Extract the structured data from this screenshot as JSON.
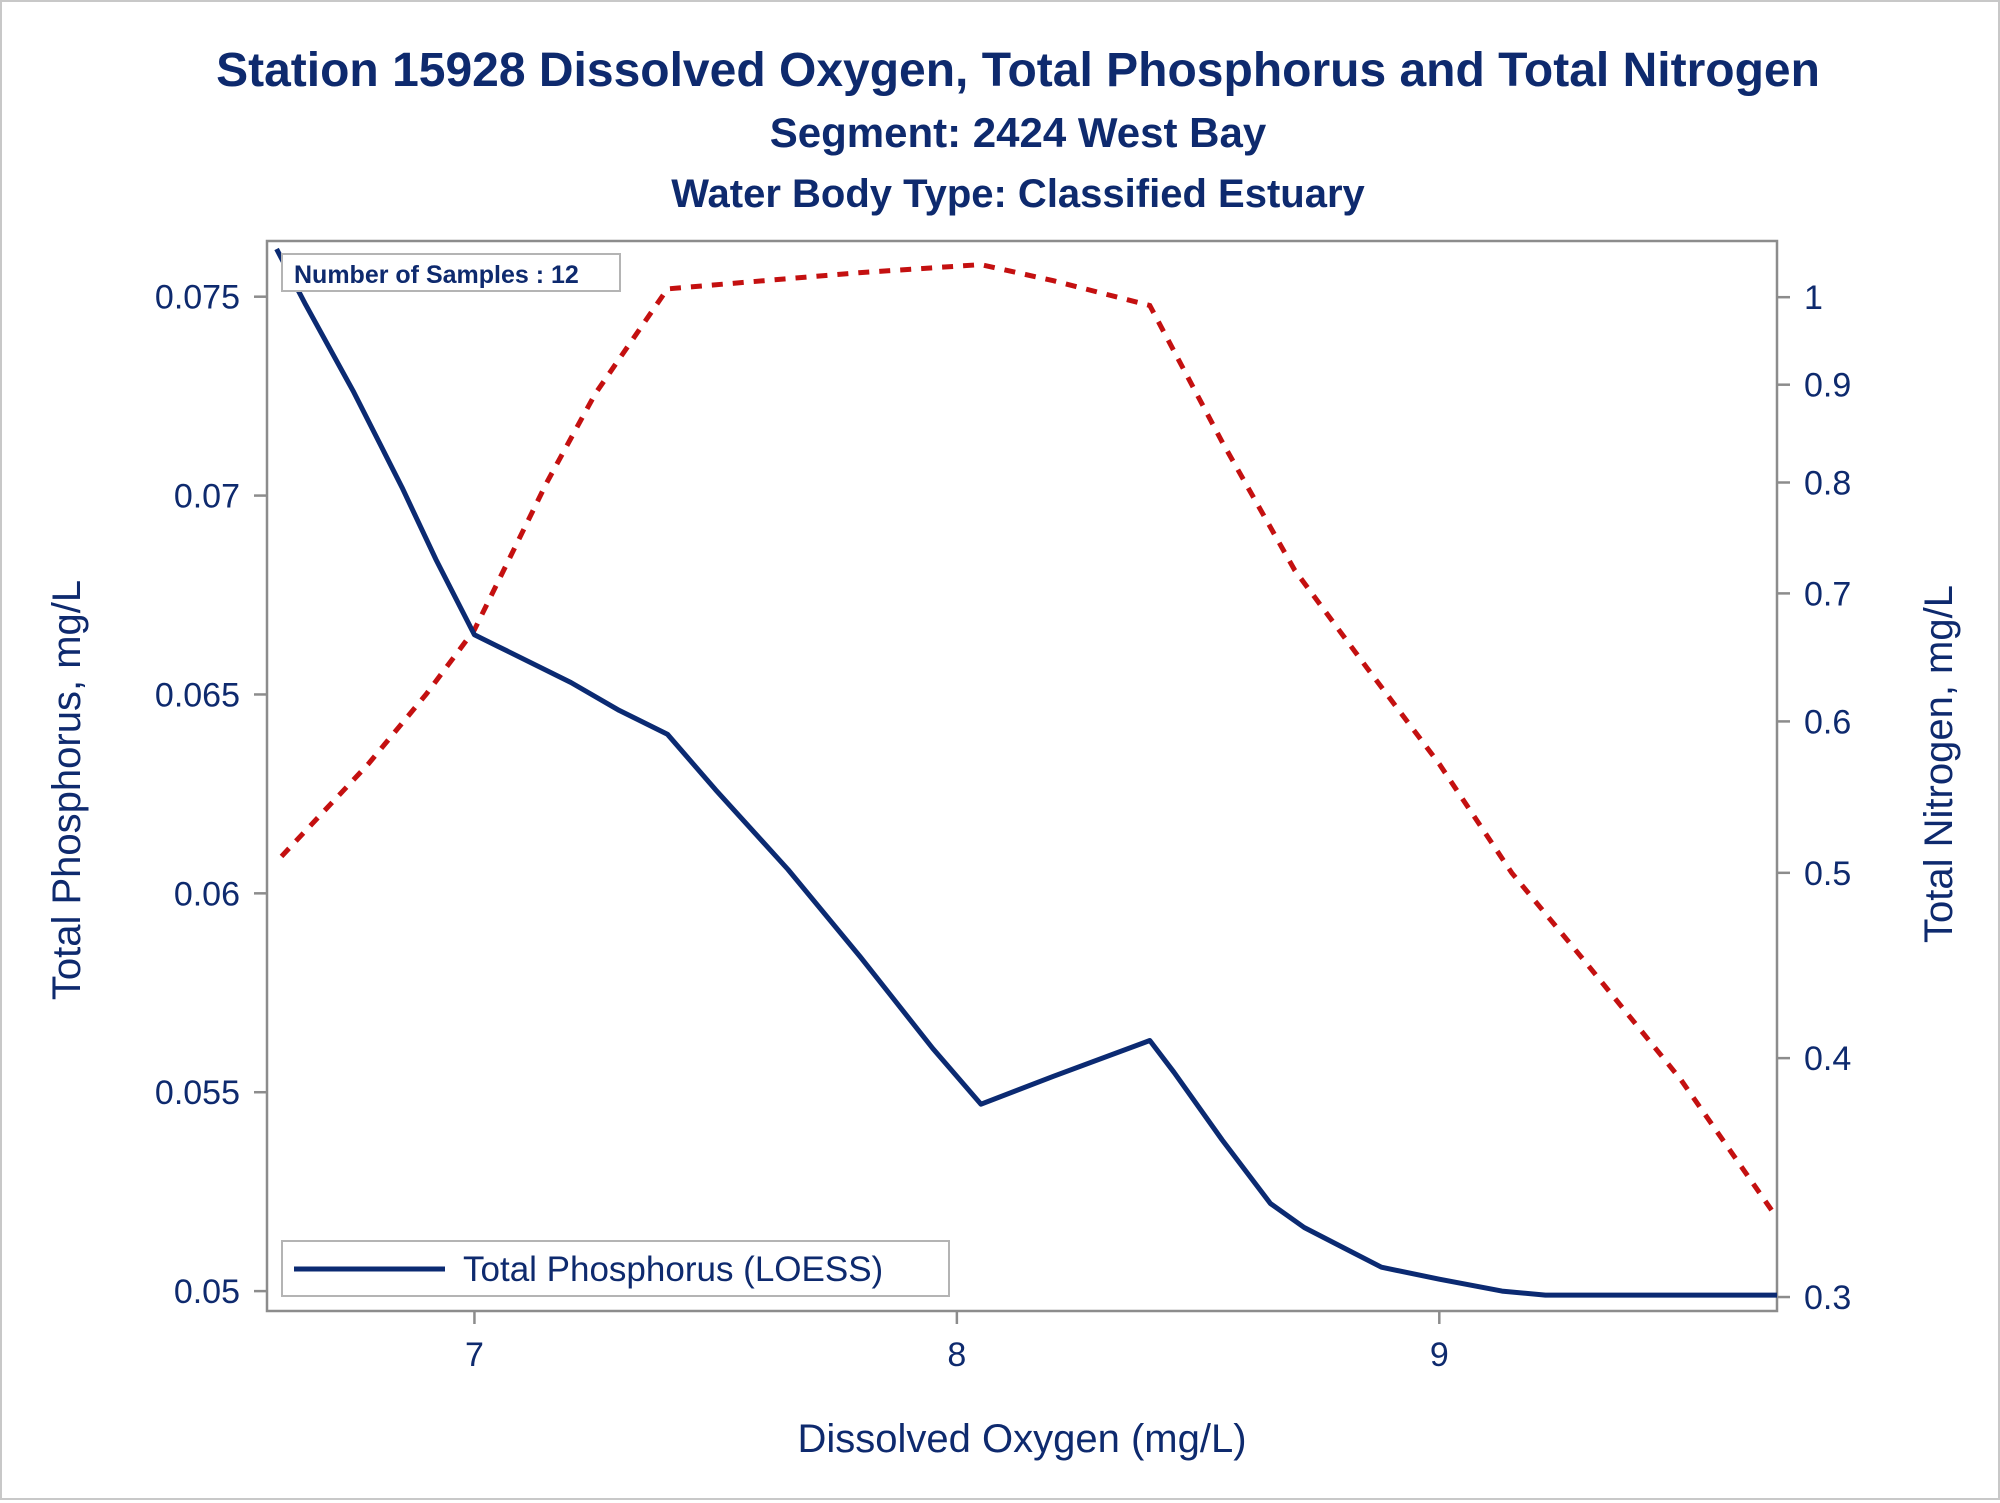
{
  "titles": {
    "line1": "Station 15928  Dissolved Oxygen, Total Phosphorus and Total Nitrogen",
    "line2": "Segment: 2424  West Bay",
    "line3": "Water Body Type: Classified Estuary"
  },
  "colors": {
    "text": "#0e2a6e",
    "phosphorus": "#0b2a72",
    "nitrogen": "#c41010",
    "frame": "#8c8c8c"
  },
  "inset_label": "Number of Samples : 12",
  "legend": {
    "label": "Total Phosphorus (LOESS)",
    "position": "bottom-left"
  },
  "chart_data": {
    "type": "line",
    "xlabel": "Dissolved Oxygen (mg/L)",
    "ylabel_left": "Total Phosphorus, mg/L",
    "ylabel_right": "Total Nitrogen, mg/L",
    "xlim": [
      6.57,
      9.7
    ],
    "ylim_left": [
      0.0495,
      0.0764
    ],
    "ylim_right": [
      0.295,
      1.07
    ],
    "right_axis_scale": "log",
    "x_ticks": [
      "7",
      "8",
      "9"
    ],
    "y_left_ticks": [
      "0.05",
      "0.055",
      "0.06",
      "0.065",
      "0.07",
      "0.075"
    ],
    "y_right_ticks": [
      "0.3",
      "0.4",
      "0.5",
      "0.6",
      "0.7",
      "0.8",
      "0.9",
      "1"
    ],
    "grid": false,
    "series": [
      {
        "name": "Total Phosphorus (LOESS)",
        "axis": "left",
        "style": "solid",
        "x": [
          6.59,
          6.65,
          6.75,
          6.85,
          6.92,
          7.0,
          7.05,
          7.2,
          7.3,
          7.4,
          7.5,
          7.65,
          7.8,
          7.95,
          8.05,
          8.2,
          8.4,
          8.45,
          8.55,
          8.65,
          8.72,
          8.8,
          8.88,
          9.0,
          9.13,
          9.22,
          9.35,
          9.55,
          9.7
        ],
        "y": [
          0.0762,
          0.0748,
          0.0726,
          0.0702,
          0.0684,
          0.0665,
          0.0662,
          0.0653,
          0.0646,
          0.064,
          0.0626,
          0.0606,
          0.0584,
          0.0561,
          0.0547,
          0.0554,
          0.0563,
          0.0555,
          0.0538,
          0.0522,
          0.0516,
          0.0511,
          0.0506,
          0.0503,
          0.05,
          0.0499,
          0.0499,
          0.0499,
          0.0499
        ]
      },
      {
        "name": "",
        "axis": "right",
        "style": "dashed",
        "x": [
          6.6,
          6.78,
          6.9,
          7.0,
          7.15,
          7.25,
          7.4,
          7.6,
          7.8,
          8.05,
          8.2,
          8.4,
          8.55,
          8.7,
          8.85,
          9.0,
          9.15,
          9.3,
          9.5,
          9.7
        ],
        "y": [
          0.51,
          0.57,
          0.62,
          0.67,
          0.8,
          0.89,
          1.01,
          1.02,
          1.03,
          1.04,
          1.02,
          0.99,
          0.84,
          0.72,
          0.64,
          0.57,
          0.5,
          0.45,
          0.39,
          0.33
        ]
      }
    ]
  }
}
